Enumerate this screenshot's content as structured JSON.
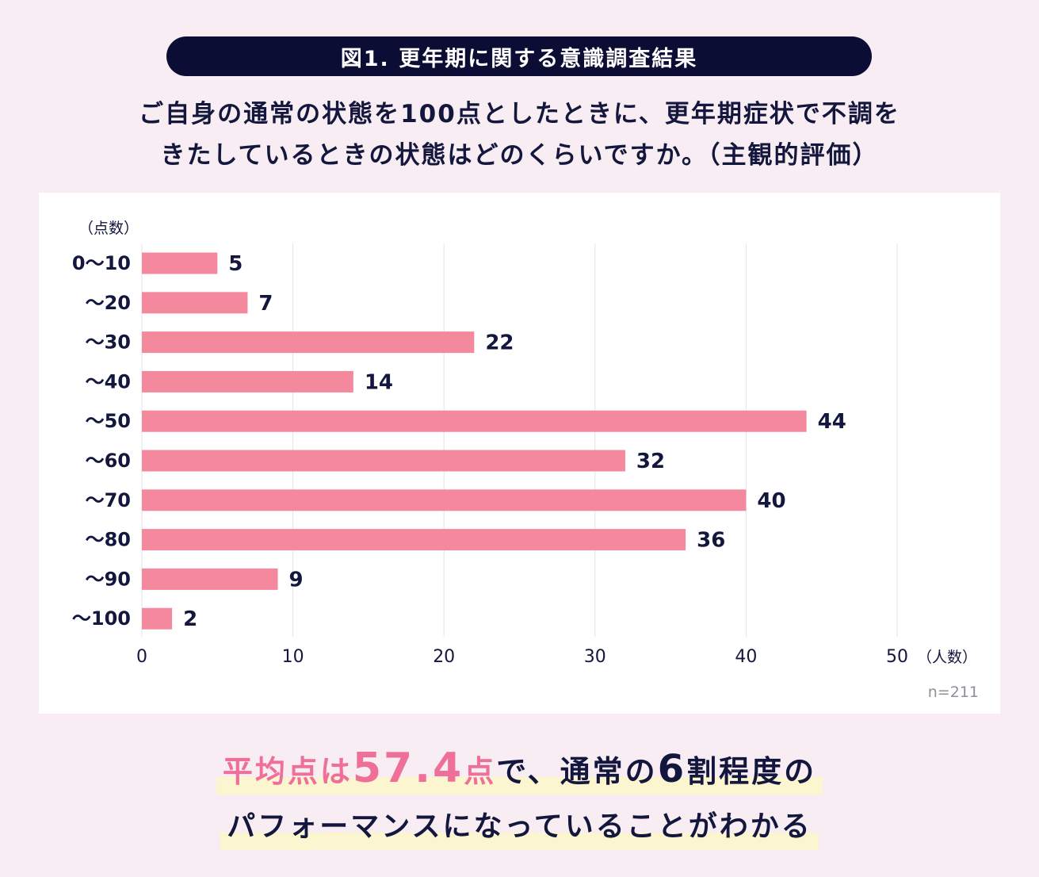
{
  "header": {
    "title": "図1. 更年期に関する意識調査結果",
    "question_line1": "ご自身の通常の状態を100点としたときに、更年期症状で不調を",
    "question_line2": "きたしているときの状態はどのくらいですか。（主観的評価）"
  },
  "chart_data": {
    "type": "bar",
    "orientation": "horizontal",
    "categories": [
      "0〜10",
      "〜20",
      "〜30",
      "〜40",
      "〜50",
      "〜60",
      "〜70",
      "〜80",
      "〜90",
      "〜100"
    ],
    "values": [
      5,
      7,
      22,
      14,
      44,
      32,
      40,
      36,
      9,
      2
    ],
    "xlim": [
      0,
      50
    ],
    "xticks": [
      0,
      10,
      20,
      30,
      40,
      50
    ],
    "ylabel": "（点数）",
    "xlabel": "（人数）",
    "sample_size": "n=211",
    "grid": true,
    "bar_color": "#f4889d"
  },
  "conclusion": {
    "line1_part1": "平均点は",
    "line1_part2": "57.4",
    "line1_part3": "点",
    "line1_part4": "で、通常の",
    "line1_part5": "6",
    "line1_part6": "割",
    "line1_part7": "程度の",
    "line2": "パフォーマンスになっていることがわかる"
  },
  "colors": {
    "background": "#f8edf3",
    "title_bg": "#0c0d35",
    "text": "#14173d",
    "highlight": "#ee6f97",
    "marker": "#fbf5d0"
  }
}
